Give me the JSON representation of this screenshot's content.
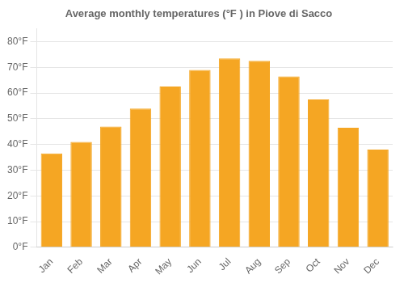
{
  "chart_data": {
    "type": "bar",
    "title": "Average monthly temperatures (°F ) in Piove di Sacco",
    "categories": [
      "Jan",
      "Feb",
      "Mar",
      "Apr",
      "May",
      "Jun",
      "Jul",
      "Aug",
      "Sep",
      "Oct",
      "Nov",
      "Dec"
    ],
    "values": [
      36.5,
      41.0,
      47.0,
      54.0,
      62.5,
      69.0,
      73.5,
      72.5,
      66.5,
      57.5,
      46.5,
      38.0
    ],
    "color": "#F5A623",
    "ylim": [
      0,
      85
    ],
    "yticks": [
      {
        "value": 0,
        "label": "0°F"
      },
      {
        "value": 10,
        "label": "10°F"
      },
      {
        "value": 20,
        "label": "20°F"
      },
      {
        "value": 30,
        "label": "30°F"
      },
      {
        "value": 40,
        "label": "40°F"
      },
      {
        "value": 50,
        "label": "50°F"
      },
      {
        "value": 60,
        "label": "60°F"
      },
      {
        "value": 70,
        "label": "70°F"
      },
      {
        "value": 80,
        "label": "80°F"
      }
    ],
    "grid": true
  }
}
